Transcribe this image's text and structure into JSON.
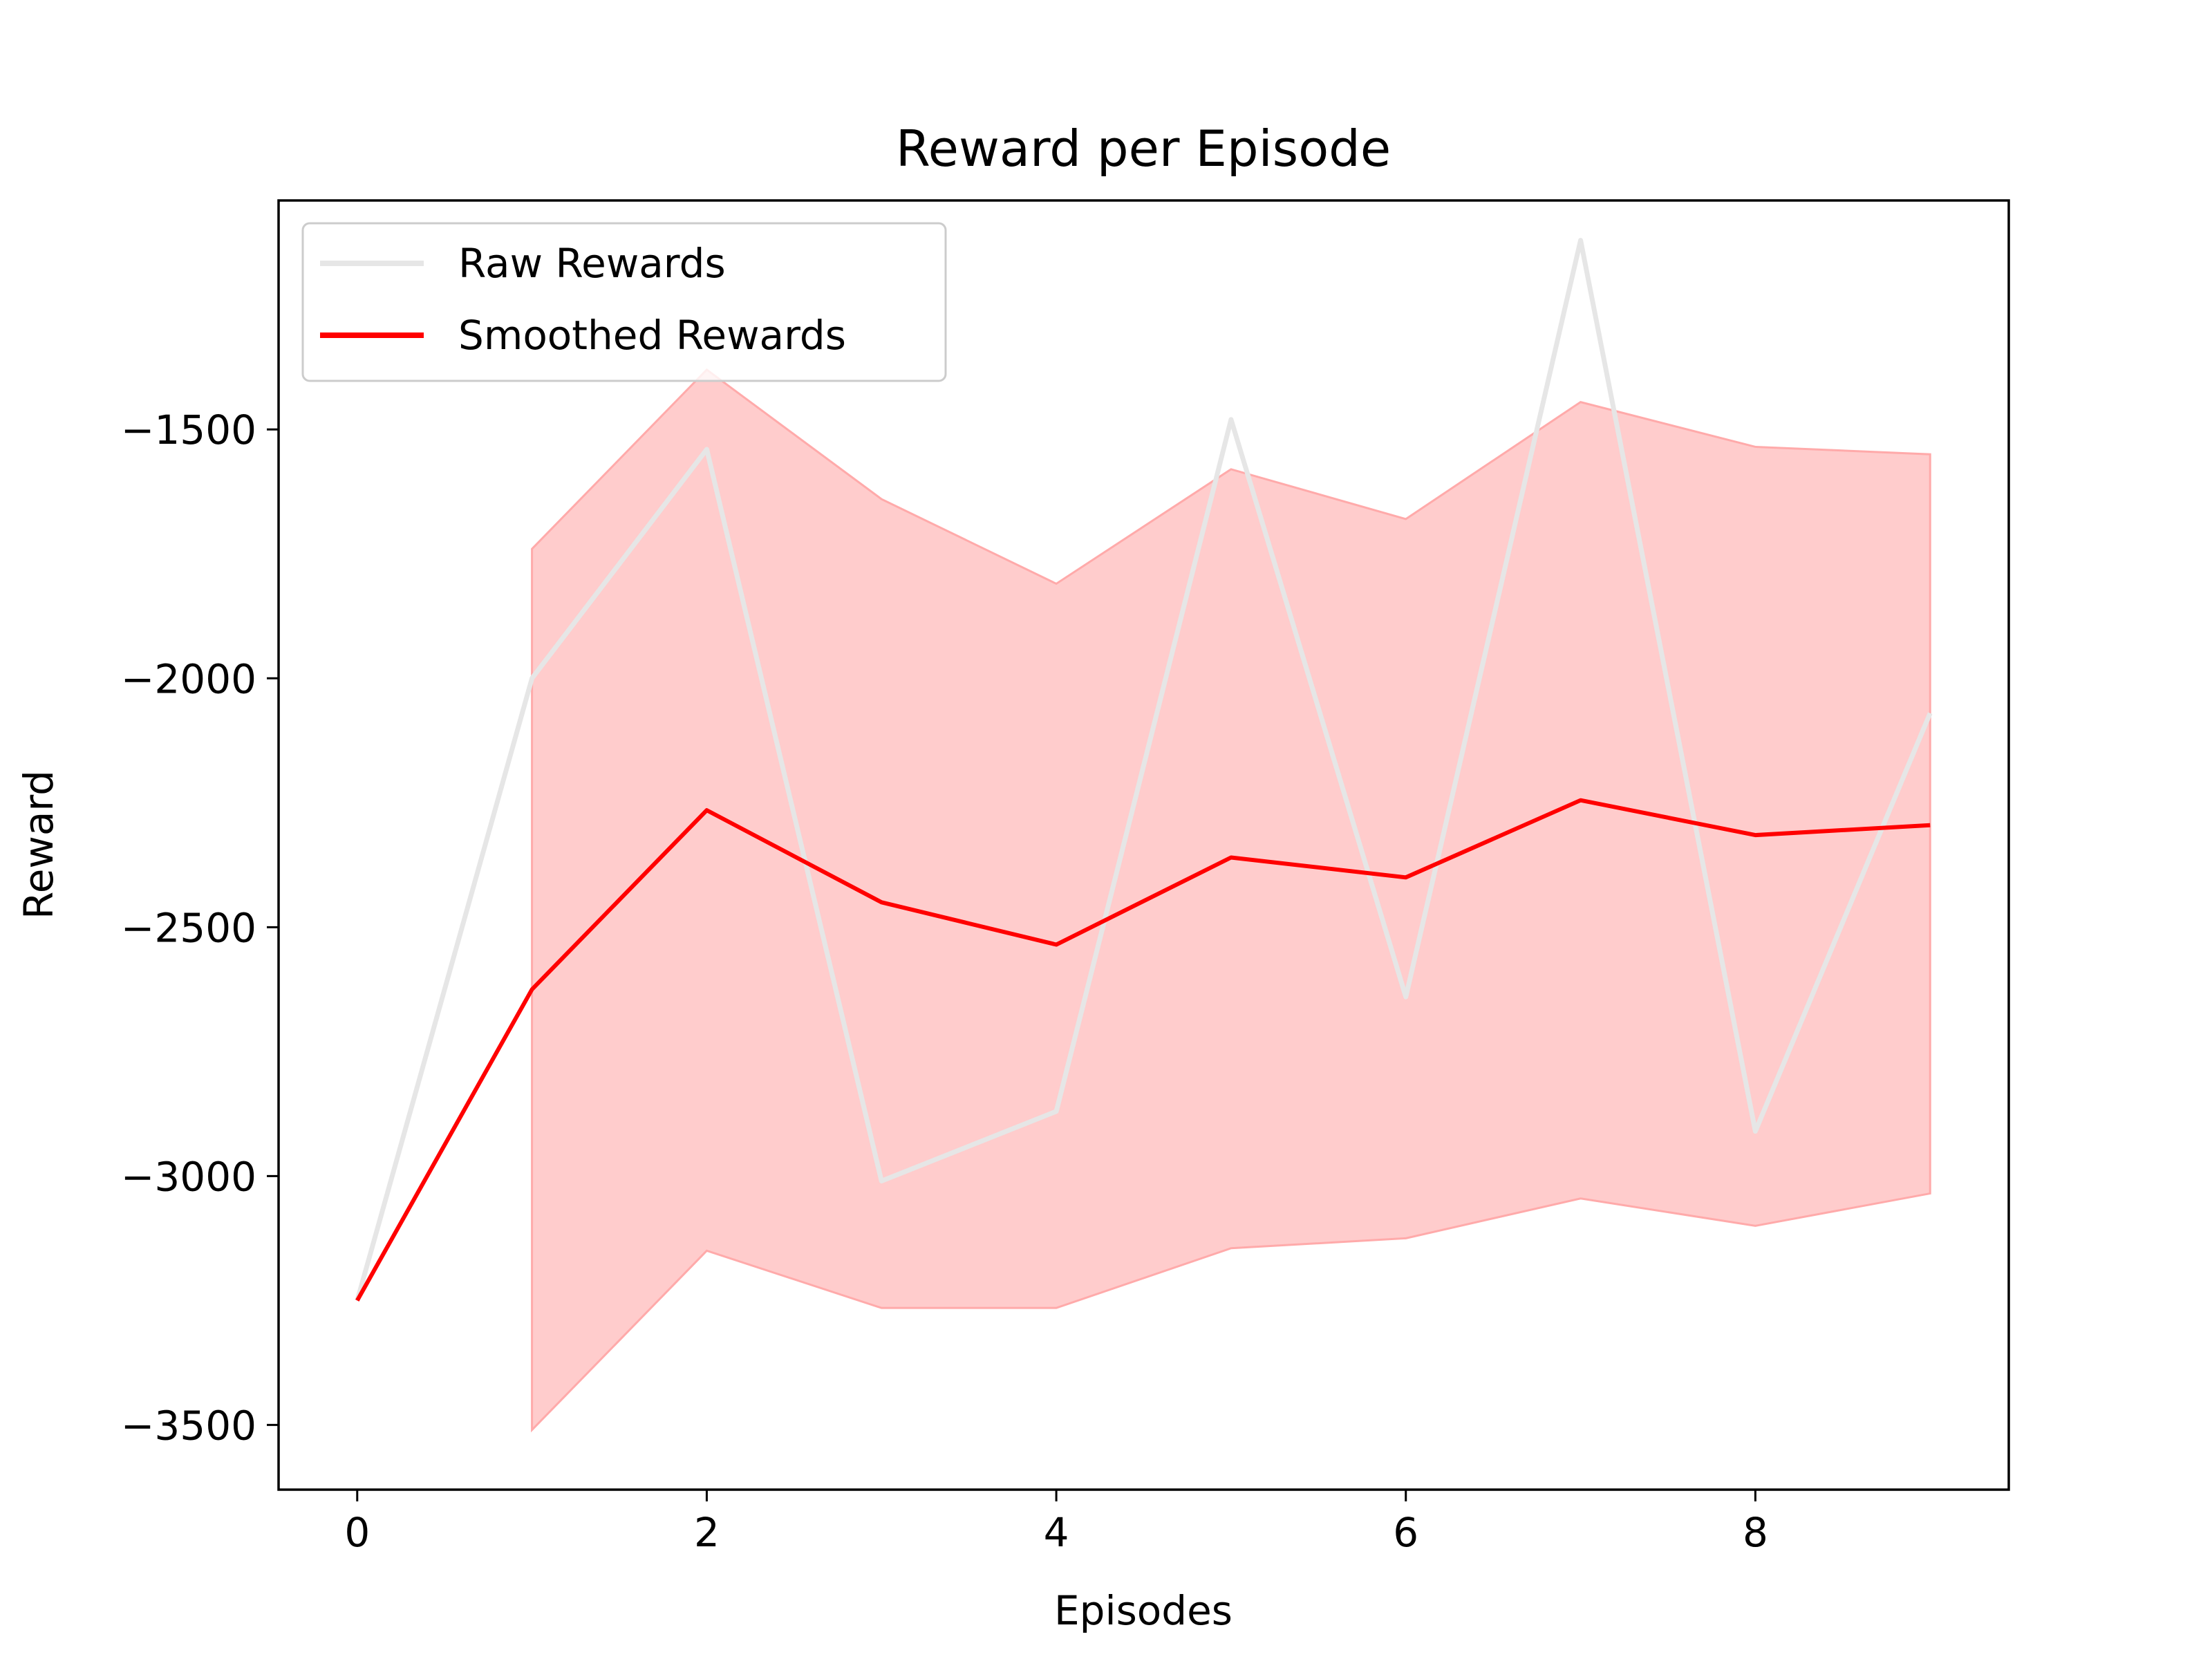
{
  "chart_data": {
    "type": "line",
    "title": "Reward per Episode",
    "xlabel": "Episodes",
    "ylabel": "Reward",
    "xlim": [
      -0.45,
      9.45
    ],
    "ylim": [
      -3630,
      -1040
    ],
    "x_ticks": [
      0,
      2,
      4,
      6,
      8
    ],
    "x_tick_labels": [
      "0",
      "2",
      "4",
      "6",
      "8"
    ],
    "y_ticks": [
      -3500,
      -3000,
      -2500,
      -2000,
      -1500
    ],
    "y_tick_labels": [
      "−3500",
      "−3000",
      "−2500",
      "−2000",
      "−1500"
    ],
    "grid": false,
    "legend_position": "top-left",
    "x": [
      0,
      1,
      2,
      3,
      4,
      5,
      6,
      7,
      8,
      9
    ],
    "series": [
      {
        "name": "Raw Rewards",
        "color": "#e6e6e6",
        "values": [
          -3250,
          -2000,
          -1540,
          -3010,
          -2870,
          -1480,
          -2640,
          -1120,
          -2910,
          -2070
        ]
      },
      {
        "name": "Smoothed Rewards",
        "color": "#ff0000",
        "values": [
          -3250,
          -2625,
          -2265,
          -2450,
          -2535,
          -2360,
          -2400,
          -2245,
          -2315,
          -2295
        ]
      }
    ],
    "band": {
      "series": "Smoothed Rewards",
      "fill_color": "#ffcccc",
      "edge_color": "#ffaaaa",
      "x": [
        1,
        2,
        3,
        4,
        5,
        6,
        7,
        8,
        9
      ],
      "upper": [
        -1740,
        -1380,
        -1640,
        -1810,
        -1580,
        -1680,
        -1445,
        -1535,
        -1550
      ],
      "lower": [
        -3510,
        -3150,
        -3265,
        -3265,
        -3145,
        -3125,
        -3045,
        -3100,
        -3035
      ]
    }
  }
}
